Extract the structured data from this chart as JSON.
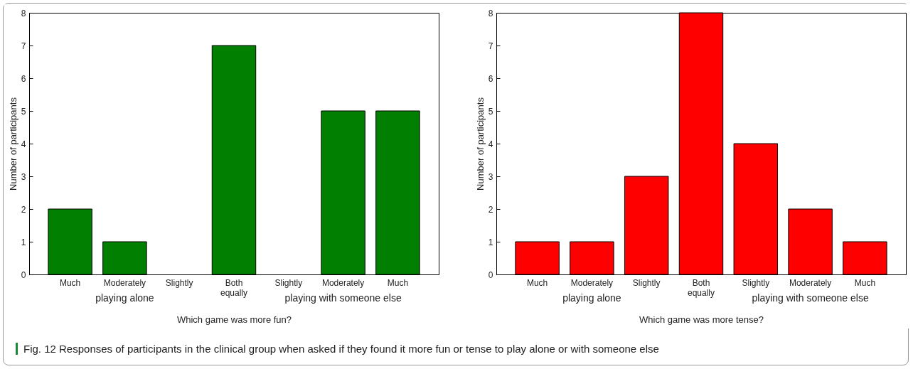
{
  "chart_data": [
    {
      "type": "bar",
      "xlabel": "Which game was more fun?",
      "ylabel": "Number of participants",
      "categories": [
        "Much",
        "Moderately",
        "Slightly",
        "Both equally",
        "Slightly",
        "Moderately",
        "Much"
      ],
      "values": [
        2,
        1,
        0,
        7,
        0,
        5,
        5
      ],
      "color": "#007f00",
      "ylim": [
        0,
        8
      ],
      "yticks": [
        0,
        1,
        2,
        3,
        4,
        5,
        6,
        7,
        8
      ],
      "grid": false,
      "annotations": [
        "playing alone",
        "playing with someone else"
      ]
    },
    {
      "type": "bar",
      "xlabel": "Which game was more tense?",
      "ylabel": "Number of participants",
      "categories": [
        "Much",
        "Moderately",
        "Slightly",
        "Both equally",
        "Slightly",
        "Moderately",
        "Much"
      ],
      "values": [
        1,
        1,
        3,
        8,
        4,
        2,
        1
      ],
      "color": "#ff0000",
      "ylim": [
        0,
        8
      ],
      "yticks": [
        0,
        1,
        2,
        3,
        4,
        5,
        6,
        7,
        8
      ],
      "grid": false,
      "annotations": [
        "playing alone",
        "playing with someone else",
        "Fig. 12 Responses of participants in the clinical group when asked if they found it more fun or tense to play alone or with someone else"
      ]
    }
  ]
}
